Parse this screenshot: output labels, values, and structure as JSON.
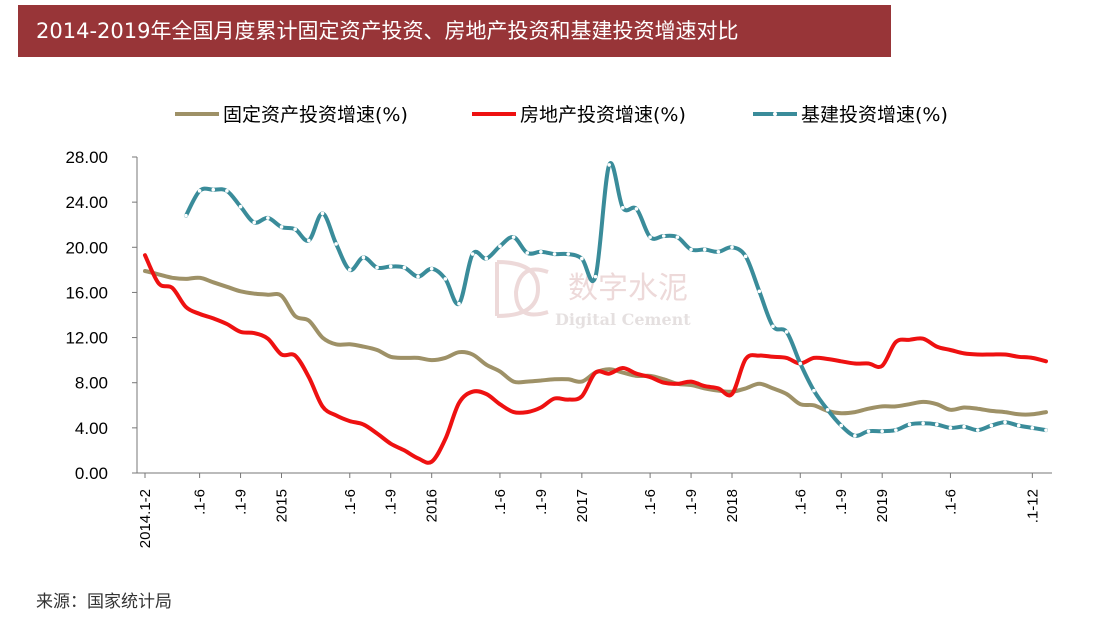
{
  "title": "2014-2019年全国月度累计固定资产投资、房地产投资和基建投资增速对比",
  "source": "来源：国家统计局",
  "watermark": {
    "logo_letters": "DC",
    "cn": "数字水泥",
    "en": "Digital Cement"
  },
  "colors": {
    "title_bg": "#983538",
    "fixed": "#9E9167",
    "real_estate": "#EE1111",
    "infra": "#3A8C9A"
  },
  "chart_data": {
    "type": "line",
    "xlabel": "",
    "ylabel": "",
    "ylim": [
      0,
      28
    ],
    "yticks": [
      "0.00",
      "4.00",
      "8.00",
      "12.00",
      "16.00",
      "20.00",
      "24.00",
      "28.00"
    ],
    "grid": false,
    "legend_position": "top",
    "x_tick_labels": [
      {
        "i": 0,
        "label": "2014.1-2"
      },
      {
        "i": 4,
        "label": ".1-6"
      },
      {
        "i": 7,
        "label": ".1-9"
      },
      {
        "i": 10,
        "label": "2015"
      },
      {
        "i": 15,
        "label": ".1-6"
      },
      {
        "i": 18,
        "label": ".1-9"
      },
      {
        "i": 21,
        "label": "2016"
      },
      {
        "i": 26,
        "label": ".1-6"
      },
      {
        "i": 29,
        "label": ".1-9"
      },
      {
        "i": 32,
        "label": "2017"
      },
      {
        "i": 37,
        "label": ".1-6"
      },
      {
        "i": 40,
        "label": ".1-9"
      },
      {
        "i": 43,
        "label": "2018"
      },
      {
        "i": 48,
        "label": ".1-6"
      },
      {
        "i": 51,
        "label": ".1-9"
      },
      {
        "i": 54,
        "label": "2019"
      },
      {
        "i": 59,
        "label": ".1-6"
      },
      {
        "i": 65,
        "label": ".1-12"
      }
    ],
    "series": [
      {
        "name": "固定资产投资增速(%)",
        "start": 0,
        "values": [
          17.9,
          17.6,
          17.3,
          17.2,
          17.3,
          16.9,
          16.5,
          16.1,
          15.9,
          15.8,
          15.7,
          13.9,
          13.5,
          12.0,
          11.4,
          11.4,
          11.2,
          10.9,
          10.3,
          10.2,
          10.2,
          10.0,
          10.2,
          10.7,
          10.5,
          9.6,
          9.0,
          8.1,
          8.1,
          8.2,
          8.3,
          8.3,
          8.1,
          8.9,
          9.2,
          8.9,
          8.6,
          8.6,
          8.3,
          7.9,
          7.8,
          7.5,
          7.3,
          7.2,
          7.5,
          7.9,
          7.5,
          7.0,
          6.1,
          6.0,
          5.5,
          5.3,
          5.4,
          5.7,
          5.9,
          5.9,
          6.1,
          6.3,
          6.1,
          5.6,
          5.8,
          5.7,
          5.5,
          5.4,
          5.2,
          5.2,
          5.4
        ]
      },
      {
        "name": "房地产投资增速(%)",
        "start": 0,
        "values": [
          19.3,
          16.8,
          16.4,
          14.7,
          14.1,
          13.7,
          13.2,
          12.5,
          12.4,
          11.9,
          10.5,
          10.4,
          8.5,
          5.9,
          5.1,
          4.6,
          4.3,
          3.5,
          2.6,
          2.0,
          1.3,
          1.0,
          3.0,
          6.2,
          7.2,
          7.0,
          6.1,
          5.4,
          5.4,
          5.8,
          6.6,
          6.5,
          6.8,
          8.9,
          8.8,
          9.3,
          8.8,
          8.5,
          8.0,
          7.9,
          8.1,
          7.7,
          7.5,
          7.0,
          10.1,
          10.4,
          10.3,
          10.2,
          9.7,
          10.2,
          10.1,
          9.9,
          9.7,
          9.7,
          9.5,
          11.6,
          11.8,
          11.9,
          11.2,
          10.9,
          10.6,
          10.5,
          10.5,
          10.5,
          10.3,
          10.2,
          9.9
        ]
      },
      {
        "name": "基建投资增速(%)",
        "start": 3,
        "values": [
          22.8,
          25.0,
          25.1,
          25.0,
          23.6,
          22.2,
          22.6,
          21.8,
          21.6,
          20.6,
          23.0,
          20.3,
          18.0,
          19.1,
          18.2,
          18.3,
          18.2,
          17.4,
          18.1,
          17.2,
          15.0,
          19.4,
          19.0,
          20.1,
          20.9,
          19.5,
          19.6,
          19.4,
          19.4,
          19.0,
          17.4,
          27.3,
          23.5,
          23.4,
          20.9,
          21.0,
          20.9,
          19.8,
          19.8,
          19.6,
          20.0,
          19.2,
          16.1,
          13.0,
          12.5,
          9.7,
          7.3,
          5.6,
          4.2,
          3.3,
          3.7,
          3.7,
          3.8,
          4.3,
          4.4,
          4.3,
          4.0,
          4.1,
          3.8,
          4.2,
          4.5,
          4.2,
          4.0,
          3.8
        ]
      }
    ]
  }
}
